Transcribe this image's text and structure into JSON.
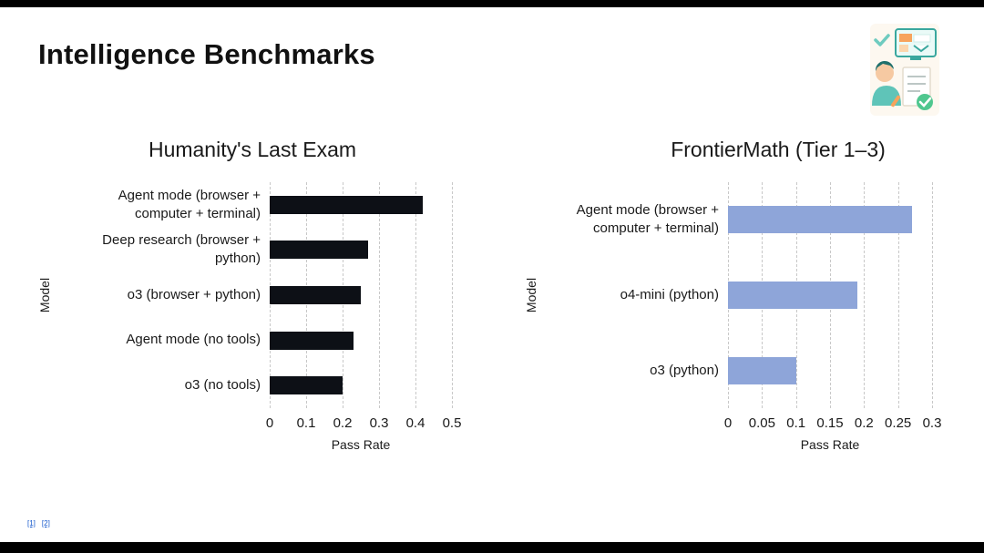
{
  "page": {
    "title": "Intelligence Benchmarks",
    "footnotes": [
      "[1]",
      "[2]"
    ]
  },
  "chart_data": [
    {
      "type": "bar",
      "orientation": "horizontal",
      "title": "Humanity's Last Exam",
      "xlabel": "Pass Rate",
      "ylabel": "Model",
      "categories": [
        "Agent mode (browser +\ncomputer + terminal)",
        "Deep research (browser +\npython)",
        "o3 (browser + python)",
        "Agent mode (no tools)",
        "o3 (no tools)"
      ],
      "values": [
        0.42,
        0.27,
        0.25,
        0.23,
        0.2
      ],
      "xlim": [
        0,
        0.5
      ],
      "xticks": [
        0,
        0.1,
        0.2,
        0.3,
        0.4,
        0.5
      ],
      "xtick_labels": [
        "0",
        "0.1",
        "0.2",
        "0.3",
        "0.4",
        "0.5"
      ],
      "bar_color": "#0d1016",
      "grid": "dashed-vertical",
      "legend": "none"
    },
    {
      "type": "bar",
      "orientation": "horizontal",
      "title": "FrontierMath (Tier 1–3)",
      "xlabel": "Pass Rate",
      "ylabel": "Model",
      "categories": [
        "Agent mode (browser +\ncomputer + terminal)",
        "o4-mini (python)",
        "o3 (python)"
      ],
      "values": [
        0.27,
        0.19,
        0.1
      ],
      "xlim": [
        0,
        0.3
      ],
      "xticks": [
        0,
        0.05,
        0.1,
        0.15,
        0.2,
        0.25,
        0.3
      ],
      "xtick_labels": [
        "0",
        "0.05",
        "0.1",
        "0.15",
        "0.2",
        "0.25",
        "0.3"
      ],
      "bar_color": "#8ea5d9",
      "grid": "dashed-vertical",
      "legend": "none"
    }
  ],
  "illustration": {
    "name": "person-computer-checklist-illustration"
  }
}
